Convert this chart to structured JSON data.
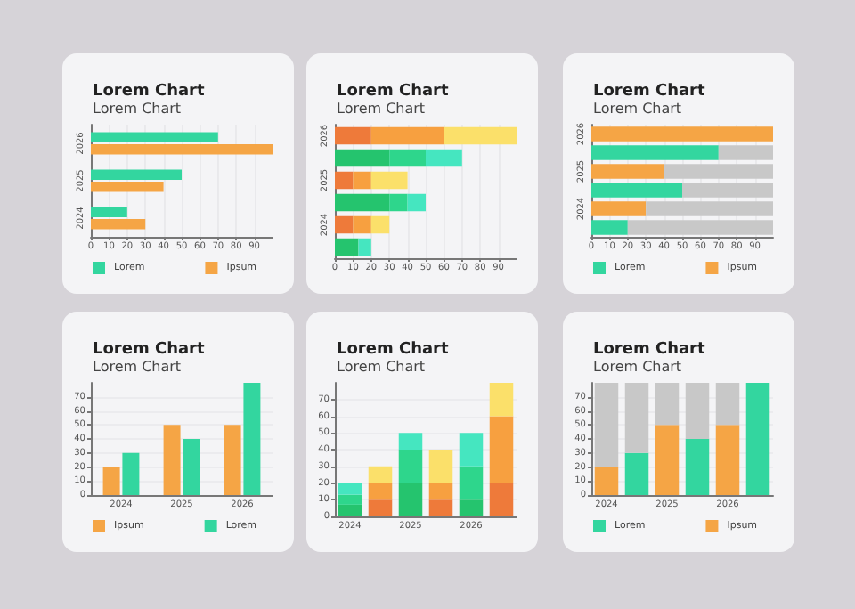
{
  "chart_data": [
    {
      "type": "bar",
      "title": "Lorem Chart",
      "subtitle": "Lorem Chart",
      "orientation": "horizontal",
      "categories": [
        "2026",
        "2025",
        "2024"
      ],
      "xlim": [
        0,
        100
      ],
      "xticks": [
        0,
        10,
        20,
        30,
        40,
        50,
        60,
        70,
        80,
        90
      ],
      "grid": "x",
      "legend": "bottom left",
      "series": [
        {
          "name": "Lorem",
          "color": "#33d69f",
          "values": [
            70,
            50,
            20
          ]
        },
        {
          "name": "Ipsum",
          "color": "#f5a545",
          "values": [
            100,
            40,
            30
          ]
        }
      ]
    },
    {
      "type": "bar",
      "title": "Lorem Chart",
      "subtitle": "Lorem Chart",
      "orientation": "horizontal",
      "stacked": true,
      "categories": [
        "2026",
        null,
        "2025",
        null,
        "2024",
        null
      ],
      "xlim": [
        0,
        100
      ],
      "xticks": [
        0,
        10,
        20,
        30,
        40,
        50,
        60,
        70,
        80,
        90
      ],
      "grid": "x",
      "series": [
        {
          "color": "#25c46e",
          "values": [
            null,
            30,
            null,
            30,
            null,
            13
          ]
        },
        {
          "color": "#2ed68c",
          "values": [
            null,
            20,
            null,
            10,
            null,
            0
          ]
        },
        {
          "color": "#45e6c0",
          "values": [
            null,
            20,
            null,
            10,
            null,
            7
          ]
        },
        {
          "color": "#ee7a3a",
          "values": [
            20,
            null,
            10,
            null,
            10,
            null
          ]
        },
        {
          "color": "#f7a040",
          "values": [
            40,
            null,
            10,
            null,
            10,
            null
          ]
        },
        {
          "color": "#fbe06a",
          "values": [
            40,
            null,
            20,
            null,
            10,
            null
          ]
        }
      ]
    },
    {
      "type": "bar",
      "title": "Lorem Chart",
      "subtitle": "Lorem Chart",
      "orientation": "horizontal",
      "stacked": true,
      "categories": [
        "2026",
        null,
        "2025",
        null,
        "2024",
        null
      ],
      "xlim": [
        0,
        100
      ],
      "xticks": [
        0,
        10,
        20,
        30,
        40,
        50,
        60,
        70,
        80,
        90
      ],
      "grid": "x",
      "legend": "bottom left",
      "series": [
        {
          "name": "Lorem",
          "color": "#33d69f",
          "values": [
            null,
            70,
            null,
            50,
            null,
            20
          ]
        },
        {
          "name": "Ipsum",
          "color": "#f5a545",
          "values": [
            100,
            null,
            40,
            null,
            30,
            null
          ]
        },
        {
          "color": "#c8c8c8",
          "values": [
            0,
            30,
            60,
            50,
            70,
            80
          ]
        }
      ]
    },
    {
      "type": "bar",
      "title": "Lorem Chart",
      "subtitle": "Lorem Chart",
      "categories": [
        "2024",
        "2025",
        "2026"
      ],
      "ylim": [
        0,
        80
      ],
      "yticks": [
        0,
        10,
        20,
        30,
        40,
        50,
        60,
        70
      ],
      "grid": "y",
      "legend": "bottom left",
      "series": [
        {
          "name": "Ipsum",
          "color": "#f5a545",
          "values": [
            20,
            50,
            50
          ]
        },
        {
          "name": "Lorem",
          "color": "#33d69f",
          "values": [
            30,
            40,
            80
          ]
        }
      ]
    },
    {
      "type": "bar",
      "title": "Lorem Chart",
      "subtitle": "Lorem Chart",
      "stacked": true,
      "categories": [
        "2024",
        null,
        "2025",
        null,
        "2026",
        null
      ],
      "ylim": [
        0,
        80
      ],
      "yticks": [
        0,
        10,
        20,
        30,
        40,
        50,
        60,
        70
      ],
      "grid": "y",
      "series": [
        {
          "color": "#25c46e",
          "values": [
            7,
            null,
            20,
            null,
            10,
            null
          ]
        },
        {
          "color": "#2ed68c",
          "values": [
            6,
            null,
            20,
            null,
            20,
            null
          ]
        },
        {
          "color": "#45e6c0",
          "values": [
            7,
            null,
            10,
            null,
            20,
            null
          ]
        },
        {
          "color": "#ee7a3a",
          "values": [
            null,
            10,
            null,
            10,
            null,
            20
          ]
        },
        {
          "color": "#f7a040",
          "values": [
            null,
            10,
            null,
            10,
            null,
            40
          ]
        },
        {
          "color": "#fbe06a",
          "values": [
            null,
            10,
            null,
            20,
            null,
            20
          ]
        }
      ]
    },
    {
      "type": "bar",
      "title": "Lorem Chart",
      "subtitle": "Lorem Chart",
      "stacked": true,
      "categories": [
        "2024",
        null,
        "2025",
        null,
        "2026",
        null
      ],
      "ylim": [
        0,
        80
      ],
      "yticks": [
        0,
        10,
        20,
        30,
        40,
        50,
        60,
        70
      ],
      "grid": "y",
      "legend": "bottom left",
      "series": [
        {
          "name": "Lorem",
          "color": "#33d69f",
          "values": [
            null,
            30,
            null,
            40,
            null,
            80
          ]
        },
        {
          "name": "Ipsum",
          "color": "#f5a545",
          "values": [
            20,
            null,
            50,
            null,
            50,
            null
          ]
        },
        {
          "color": "#c8c8c8",
          "values": [
            60,
            50,
            30,
            40,
            30,
            0
          ]
        }
      ]
    }
  ]
}
